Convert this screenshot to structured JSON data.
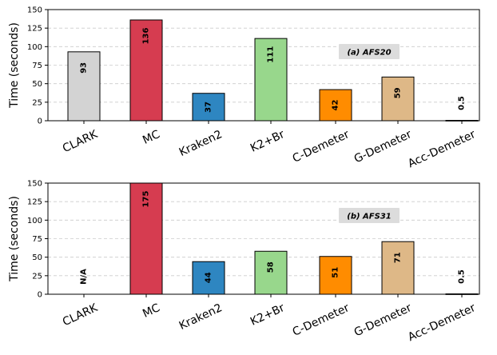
{
  "chart_data": [
    {
      "type": "bar",
      "title": "(a) AFS20",
      "ylabel": "Time (seconds)",
      "ylim": [
        0,
        150
      ],
      "yticks": [
        0,
        25,
        50,
        75,
        100,
        125,
        150
      ],
      "grid": true,
      "categories": [
        "CLARK",
        "MC",
        "Kraken2",
        "K2+Br",
        "C-Demeter",
        "G-Demeter",
        "Acc-Demeter"
      ],
      "values": [
        93,
        136,
        37,
        111,
        42,
        59,
        0.5
      ],
      "value_labels": [
        "93",
        "136",
        "37",
        "111",
        "42",
        "59",
        "0.5"
      ],
      "colors": [
        "#d3d3d3",
        "#d63c50",
        "#2e86c1",
        "#98d78c",
        "#ff8c00",
        "#deb887",
        "#000000"
      ]
    },
    {
      "type": "bar",
      "title": "(b) AFS31",
      "ylabel": "Time (seconds)",
      "ylim": [
        0,
        150
      ],
      "yticks": [
        0,
        25,
        50,
        75,
        100,
        125,
        150
      ],
      "grid": true,
      "categories": [
        "CLARK",
        "MC",
        "Kraken2",
        "K2+Br",
        "C-Demeter",
        "G-Demeter",
        "Acc-Demeter"
      ],
      "values": [
        0,
        175,
        44,
        58,
        51,
        71,
        0.5
      ],
      "value_labels": [
        "N/A",
        "175",
        "44",
        "58",
        "51",
        "71",
        "0.5"
      ],
      "colors": [
        "#d3d3d3",
        "#d63c50",
        "#2e86c1",
        "#98d78c",
        "#ff8c00",
        "#deb887",
        "#000000"
      ]
    }
  ]
}
